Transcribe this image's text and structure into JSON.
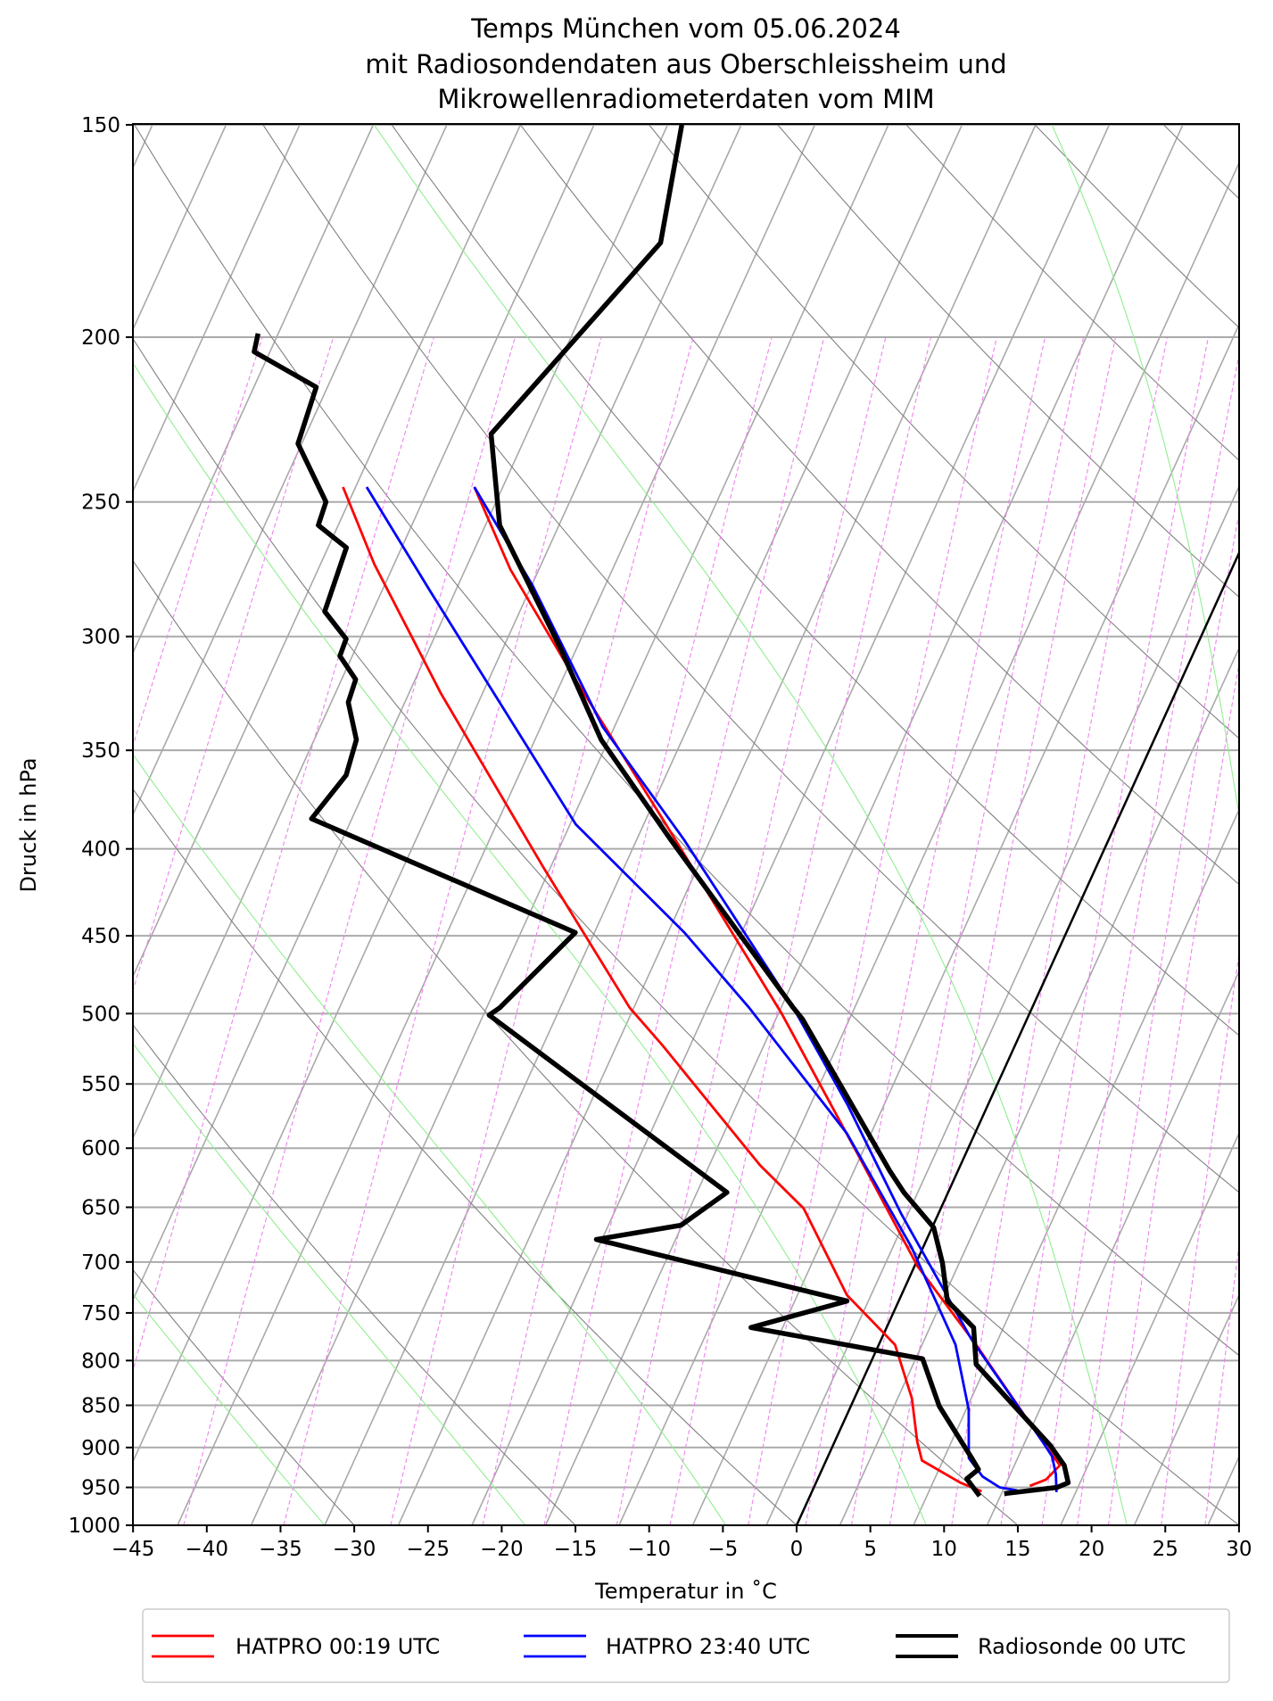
{
  "chart_data": {
    "type": "line",
    "subtype": "skew-T log-p diagram",
    "title": [
      "Temps München vom 05.06.2024",
      "mit Radiosondendaten aus Oberschleissheim und",
      "Mikrowellenradiometerdaten vom MIM"
    ],
    "xlabel": "Temperatur in ˚C",
    "ylabel": "Druck in hPa",
    "xlim": [
      -45,
      30
    ],
    "ylim": [
      1000,
      150
    ],
    "yscale": "log",
    "grid": true,
    "xticks": [
      -45,
      -40,
      -35,
      -30,
      -25,
      -20,
      -15,
      -10,
      -5,
      0,
      5,
      10,
      15,
      20,
      25,
      30
    ],
    "xtick_labels": [
      "−45",
      "−40",
      "−35",
      "−30",
      "−25",
      "−20",
      "−15",
      "−10",
      "−5",
      "0",
      "5",
      "10",
      "15",
      "20",
      "25",
      "30"
    ],
    "yticks": [
      150,
      200,
      250,
      300,
      350,
      400,
      450,
      500,
      550,
      600,
      650,
      700,
      750,
      800,
      850,
      900,
      950,
      1000
    ],
    "ytick_labels": [
      "150",
      "200",
      "250",
      "300",
      "350",
      "400",
      "450",
      "500",
      "550",
      "600",
      "650",
      "700",
      "750",
      "800",
      "850",
      "900",
      "950",
      "1000"
    ],
    "legend_position": "bottom-center (below plot)",
    "legend": [
      {
        "label": "HATPRO 00:19 UTC",
        "color": "#ff0000"
      },
      {
        "label": "HATPRO 23:40 UTC",
        "color": "#0000ff"
      },
      {
        "label": "Radiosonde 00 UTC",
        "color": "#000000"
      }
    ],
    "series": [
      {
        "name": "HATPRO 00:19 UTC",
        "variable": "temperature",
        "color": "#ff0000",
        "points_p_T": [
          [
            245,
            -53.9
          ],
          [
            274,
            -48.9
          ],
          [
            318,
            -41.1
          ],
          [
            384,
            -30.9
          ],
          [
            500,
            -16.8
          ],
          [
            605,
            -7.3
          ],
          [
            704,
            0.2
          ],
          [
            783,
            6.6
          ],
          [
            893,
            14.1
          ],
          [
            922,
            16.0
          ],
          [
            940,
            15.5
          ],
          [
            948,
            14.6
          ]
        ]
      },
      {
        "name": "HATPRO 00:19 UTC",
        "variable": "dewpoint",
        "color": "#ff0000",
        "points_p_T": [
          [
            245,
            -62.8
          ],
          [
            272,
            -58.3
          ],
          [
            324,
            -49.8
          ],
          [
            410,
            -37.5
          ],
          [
            496,
            -27.3
          ],
          [
            522,
            -23.9
          ],
          [
            614,
            -13.6
          ],
          [
            651,
            -9.3
          ],
          [
            732,
            -3.7
          ],
          [
            783,
            1.1
          ],
          [
            842,
            3.9
          ],
          [
            893,
            5.6
          ],
          [
            916,
            6.5
          ],
          [
            944,
            9.8
          ],
          [
            955,
            11.5
          ]
        ]
      },
      {
        "name": "HATPRO 23:40 UTC",
        "variable": "temperature",
        "color": "#0000ff",
        "points_p_T": [
          [
            245,
            -53.9
          ],
          [
            280,
            -46.9
          ],
          [
            339,
            -37.8
          ],
          [
            395,
            -28.8
          ],
          [
            496,
            -16.2
          ],
          [
            566,
            -9.5
          ],
          [
            656,
            -2.5
          ],
          [
            777,
            6.1
          ],
          [
            893,
            14.1
          ],
          [
            911,
            15.2
          ],
          [
            933,
            16.0
          ],
          [
            956,
            16.6
          ]
        ]
      },
      {
        "name": "HATPRO 23:40 UTC",
        "variable": "dewpoint",
        "color": "#0000ff",
        "points_p_T": [
          [
            245,
            -61.2
          ],
          [
            282,
            -53.7
          ],
          [
            387,
            -36.6
          ],
          [
            448,
            -25.9
          ],
          [
            496,
            -19.2
          ],
          [
            588,
            -8.7
          ],
          [
            686,
            -0.8
          ],
          [
            783,
            5.2
          ],
          [
            855,
            8.1
          ],
          [
            913,
            9.6
          ],
          [
            936,
            11.1
          ],
          [
            950,
            12.6
          ],
          [
            954,
            13.9
          ]
        ]
      },
      {
        "name": "Radiosonde 00 UTC",
        "variable": "temperature",
        "color": "#000000",
        "points_p_T": [
          [
            958,
            13.1
          ],
          [
            950,
            16.5
          ],
          [
            944,
            17.1
          ],
          [
            922,
            16.3
          ],
          [
            897,
            14.7
          ],
          [
            804,
            7.2
          ],
          [
            765,
            5.9
          ],
          [
            738,
            3.3
          ],
          [
            701,
            1.8
          ],
          [
            668,
            0.1
          ],
          [
            637,
            -3.0
          ],
          [
            619,
            -4.6
          ],
          [
            504,
            -15.2
          ],
          [
            496,
            -16.2
          ],
          [
            395,
            -29.7
          ],
          [
            345,
            -37.5
          ],
          [
            304,
            -43.2
          ],
          [
            258,
            -51.0
          ],
          [
            228,
            -54.4
          ],
          [
            176,
            -48.8
          ],
          [
            150,
            -51.0
          ]
        ]
      },
      {
        "name": "Radiosonde 00 UTC",
        "variable": "dewpoint",
        "color": "#000000",
        "points_p_T": [
          [
            961,
            11.5
          ],
          [
            939,
            10.1
          ],
          [
            927,
            10.6
          ],
          [
            913,
            9.8
          ],
          [
            851,
            6.0
          ],
          [
            798,
            3.4
          ],
          [
            765,
            -9.2
          ],
          [
            738,
            -3.5
          ],
          [
            679,
            -22.4
          ],
          [
            666,
            -17.1
          ],
          [
            637,
            -15.0
          ],
          [
            501,
            -36.6
          ],
          [
            496,
            -36.1
          ],
          [
            448,
            -33.3
          ],
          [
            384,
            -54.7
          ],
          [
            362,
            -53.7
          ],
          [
            345,
            -54.1
          ],
          [
            328,
            -55.8
          ],
          [
            318,
            -56.0
          ],
          [
            308,
            -57.8
          ],
          [
            301,
            -57.9
          ],
          [
            290,
            -60.2
          ],
          [
            266,
            -60.7
          ],
          [
            258,
            -63.3
          ],
          [
            250,
            -63.5
          ],
          [
            231,
            -67.2
          ],
          [
            214,
            -67.7
          ],
          [
            204,
            -73.0
          ],
          [
            199,
            -73.3
          ]
        ]
      }
    ],
    "reference_lines": {
      "zero_isotherm_color": "#000000",
      "isotherm_color": "#a9a9a9",
      "dry_adiabat_color": "#808080",
      "moist_adiabat_color": "#90ee90",
      "mixing_ratio_color": "#ee82ee"
    }
  }
}
